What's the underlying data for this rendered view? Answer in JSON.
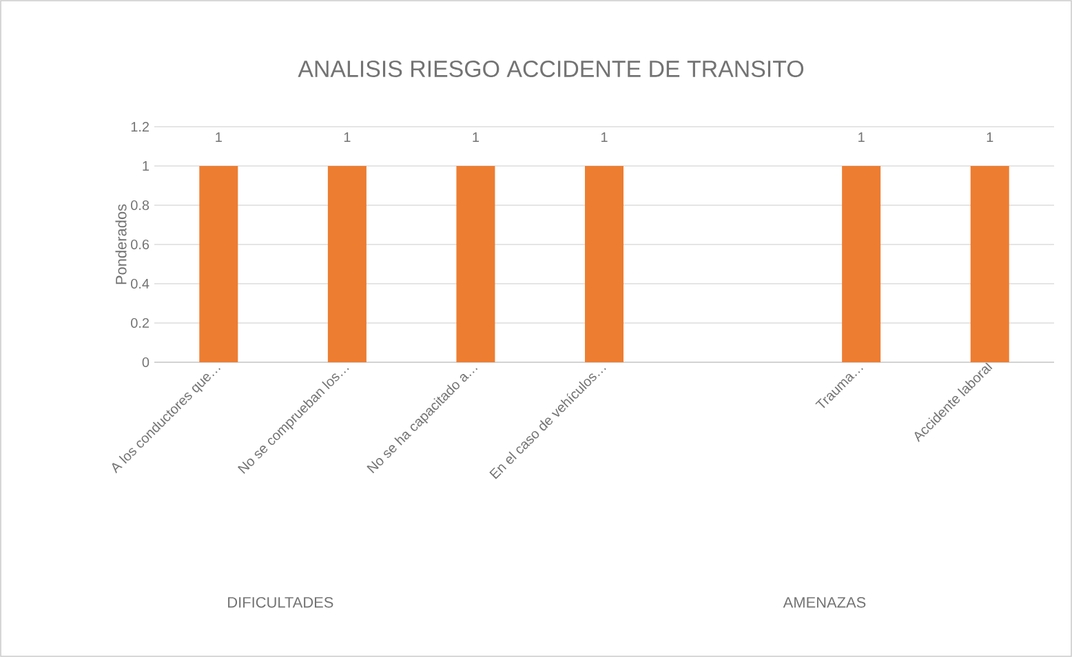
{
  "chart_data": {
    "type": "bar",
    "title": "ANALISIS RIESGO ACCIDENTE DE TRANSITO",
    "ylabel": "Ponderados",
    "categories": [
      "A los conductores que…",
      "No se comprueban los…",
      "No se ha capacitado a…",
      "En el caso de vehículos…",
      null,
      "Trauma…",
      "Accidente laboral"
    ],
    "values": [
      1,
      1,
      1,
      1,
      null,
      1,
      1
    ],
    "color": "#ed7d31",
    "ylim": [
      0,
      1.2
    ],
    "yticks": [
      0,
      0.2,
      0.4,
      0.6,
      0.8,
      1,
      1.2
    ],
    "grid": "y",
    "data_labels": true,
    "annotations": [
      "DIFICULTADES",
      "AMENAZAS"
    ]
  }
}
